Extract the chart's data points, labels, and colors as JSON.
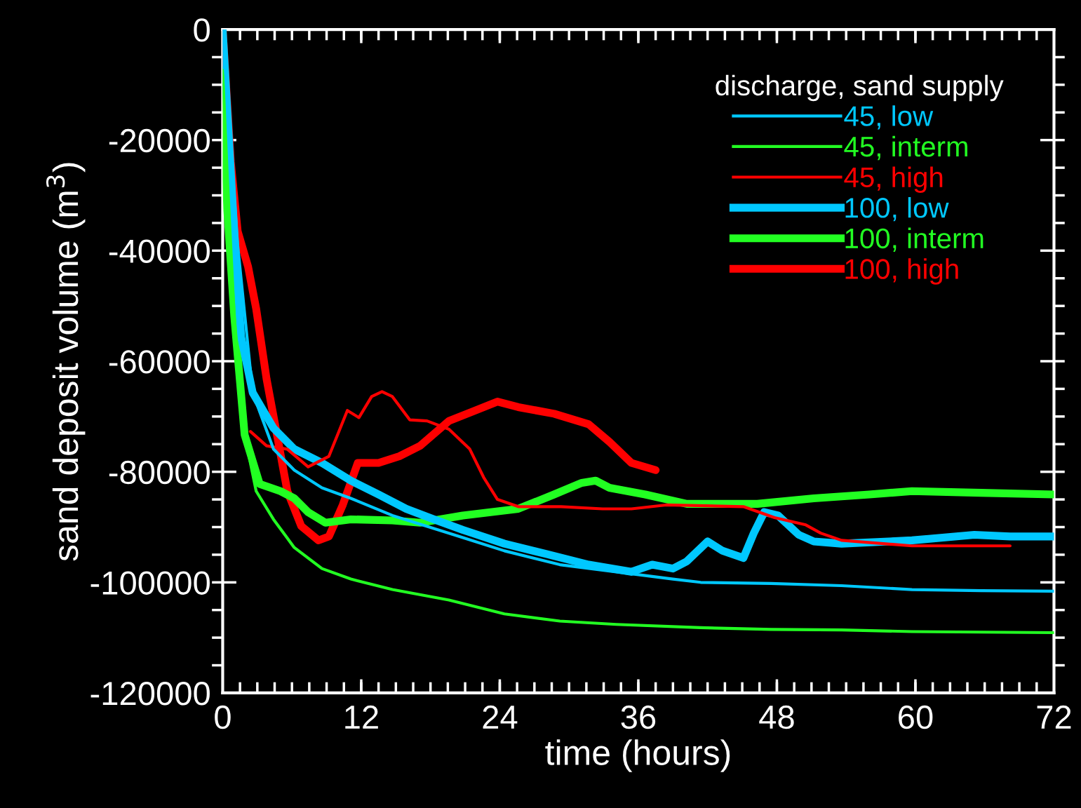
{
  "chart_data": {
    "type": "line",
    "xlabel": "time (hours)",
    "ylabel": "sand deposit volume (m$^{3}$)",
    "legend_title": "discharge, sand supply",
    "legend": "top right",
    "grid": false,
    "marker": "none",
    "line_style": "solid",
    "xlim": [
      0,
      72
    ],
    "xticks": [
      0,
      12,
      24,
      36,
      48,
      60,
      72
    ],
    "ylim": [
      -120000,
      0
    ],
    "yticks": [
      0,
      -20000,
      -40000,
      -60000,
      -80000,
      -100000,
      -120000
    ],
    "series": [
      {
        "name": "45, low",
        "color": "#00c8ff",
        "x": [
          0,
          1.3,
          2.6,
          4.4,
          6.2,
          8.6,
          11.1,
          14.7,
          19.6,
          24.4,
          29.2,
          34.1,
          39,
          41.4,
          47.5,
          53.6,
          59.7,
          65.7,
          72
        ],
        "values": [
          0,
          -39000,
          -65700,
          -75900,
          -79700,
          -82900,
          -84800,
          -87900,
          -91100,
          -94300,
          -96800,
          -98100,
          -99400,
          -100000,
          -100200,
          -100600,
          -101300,
          -101500,
          -101600
        ]
      },
      {
        "name": "45, interm",
        "color": "#22ff22",
        "x": [
          0,
          0.4,
          1,
          1.9,
          2.9,
          4.4,
          6.2,
          8.6,
          11.1,
          14.7,
          19.6,
          24.4,
          29.2,
          34.1,
          41.4,
          47.5,
          53.6,
          59.7,
          65.7,
          72
        ],
        "values": [
          -7400,
          -26400,
          -51800,
          -73300,
          -83500,
          -88600,
          -93700,
          -97500,
          -99400,
          -101300,
          -103200,
          -105700,
          -107000,
          -107600,
          -108200,
          -108500,
          -108600,
          -108900,
          -109000,
          -109100
        ]
      },
      {
        "name": "45, high",
        "color": "#ff0000",
        "x": [
          2.4,
          3.8,
          5.6,
          7.4,
          9.2,
          10.8,
          11.8,
          12.9,
          13.8,
          14.7,
          16.2,
          17.7,
          19.6,
          21.4,
          22.6,
          23.8,
          25.6,
          29.3,
          32.9,
          35.4,
          38.4,
          45.1,
          47.8,
          50.5,
          51.8,
          53.6,
          59.7,
          68.2
        ],
        "values": [
          -72700,
          -75300,
          -75900,
          -79100,
          -77200,
          -68900,
          -70200,
          -66400,
          -65500,
          -66400,
          -70600,
          -70800,
          -72300,
          -75900,
          -81000,
          -85000,
          -86300,
          -86300,
          -86700,
          -86700,
          -86000,
          -86300,
          -88300,
          -89600,
          -91100,
          -92400,
          -93400,
          -93400
        ]
      },
      {
        "name": "100, low",
        "color": "#00c8ff",
        "x": [
          0,
          1,
          1.6,
          2.6,
          4.4,
          6.2,
          8.6,
          11.1,
          13.5,
          15.9,
          18.3,
          20.8,
          24.4,
          28.1,
          31.7,
          35.4,
          37.2,
          39,
          40.2,
          42,
          43.3,
          45.1,
          46,
          46.9,
          48.1,
          49.9,
          51.2,
          53.6,
          59.7,
          65.1,
          68.2,
          72
        ],
        "values": [
          0,
          -36500,
          -55600,
          -65700,
          -72100,
          -75900,
          -78400,
          -81600,
          -84100,
          -86700,
          -88600,
          -90500,
          -93000,
          -94900,
          -96800,
          -98100,
          -96800,
          -97500,
          -96200,
          -92600,
          -94300,
          -95600,
          -91100,
          -87300,
          -87900,
          -91400,
          -92600,
          -93000,
          -92400,
          -91400,
          -91700,
          -91700
        ]
      },
      {
        "name": "100, interm",
        "color": "#22ff22",
        "x": [
          0,
          0.4,
          1,
          1.9,
          3.2,
          5,
          6.2,
          7.4,
          8.9,
          11.1,
          14.7,
          17.1,
          20.8,
          25.6,
          28.7,
          31.1,
          32.3,
          33.5,
          36.6,
          40.2,
          46.3,
          51.2,
          56,
          59.7,
          65.7,
          72
        ],
        "values": [
          -7400,
          -32700,
          -51800,
          -73300,
          -82200,
          -83500,
          -84800,
          -87300,
          -89200,
          -88600,
          -88800,
          -89200,
          -87900,
          -86700,
          -84100,
          -82000,
          -81600,
          -82900,
          -84100,
          -85800,
          -85800,
          -84800,
          -84100,
          -83500,
          -83800,
          -84100
        ]
      },
      {
        "name": "100, high",
        "color": "#ff0000",
        "x": [
          0,
          0.4,
          0.7,
          1.3,
          2.2,
          2.9,
          3.8,
          4.7,
          5.6,
          6.8,
          8.3,
          9.2,
          10.4,
          11.7,
          13.5,
          15.3,
          17.1,
          19.6,
          21.9,
          23.8,
          25.6,
          28.7,
          31.7,
          33.5,
          35.4,
          37.5
        ],
        "values": [
          0,
          -13700,
          -23900,
          -36500,
          -42900,
          -50500,
          -63200,
          -73300,
          -83500,
          -89800,
          -92400,
          -91700,
          -86000,
          -78400,
          -78400,
          -77200,
          -75300,
          -70800,
          -68900,
          -67300,
          -68300,
          -69500,
          -71400,
          -74600,
          -78400,
          -79700
        ]
      }
    ]
  }
}
